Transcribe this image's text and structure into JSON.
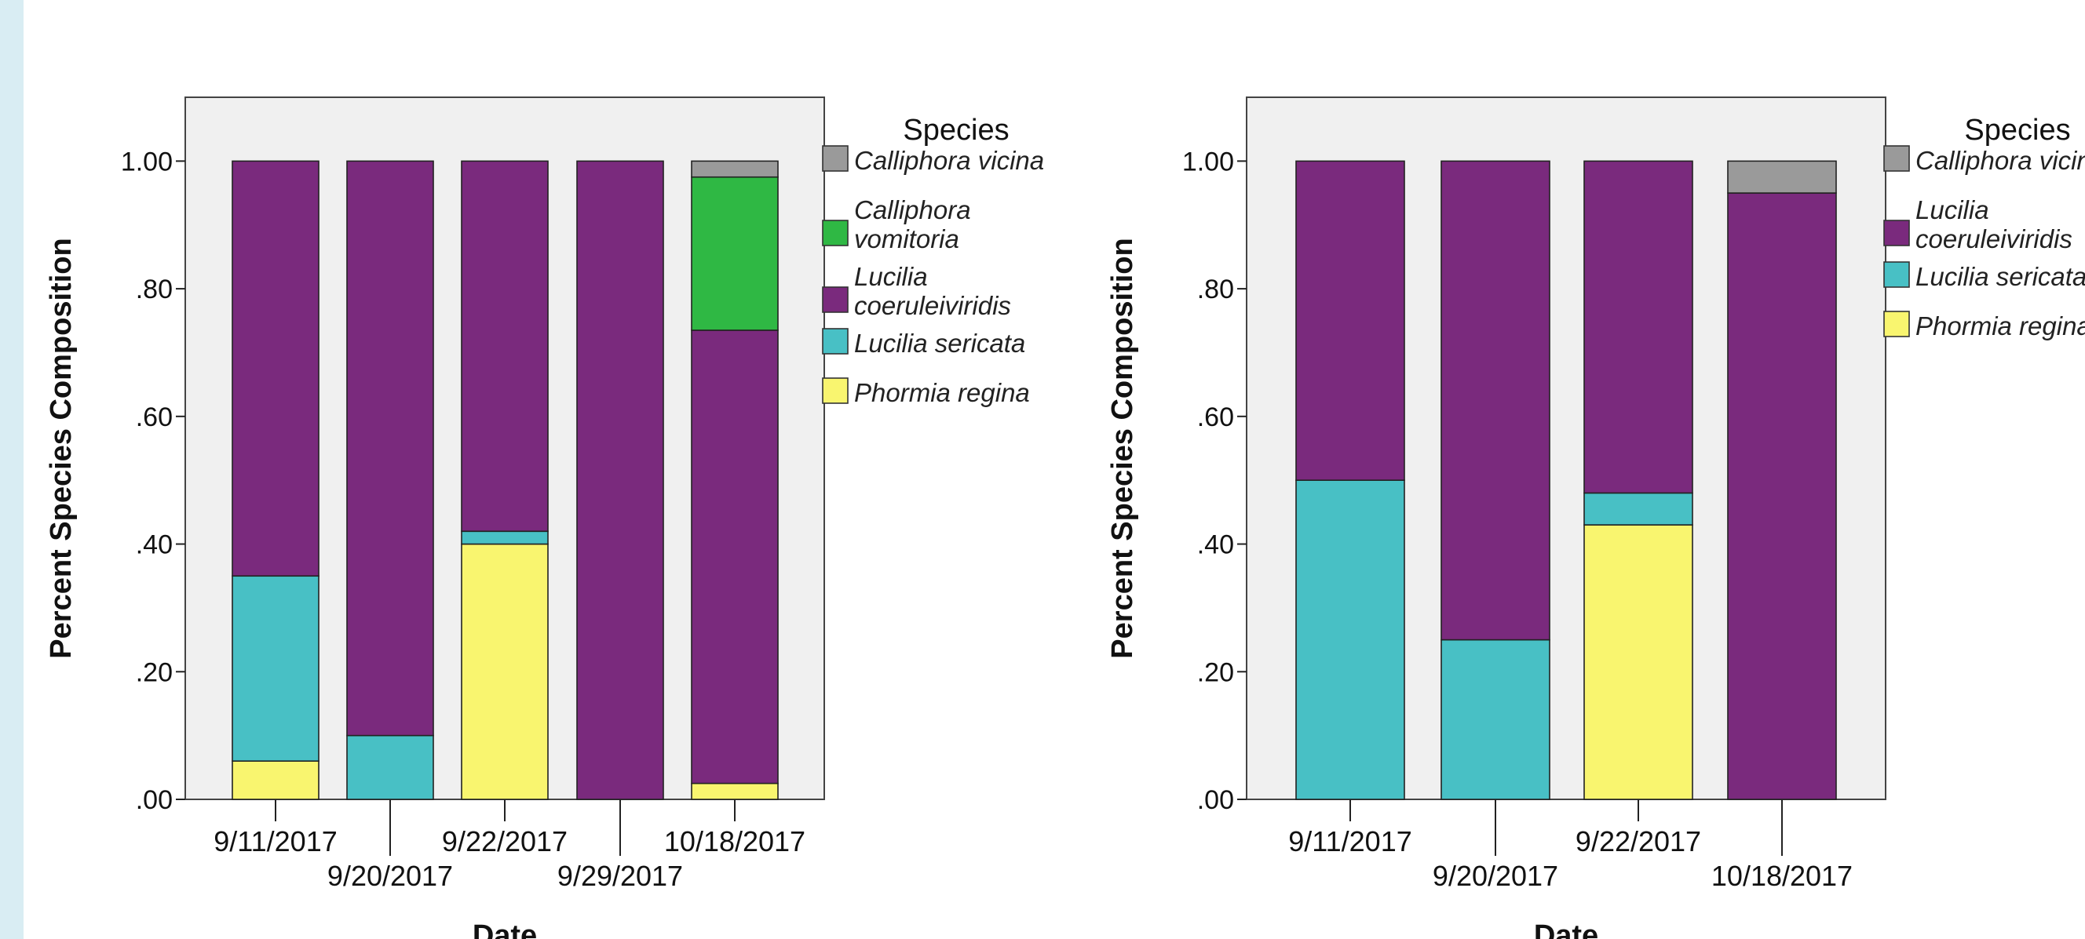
{
  "colors": {
    "page_background": "#ffffff",
    "left_strip": "#d9edf3",
    "plot_background": "#f0f0f0",
    "Calliphora vicina": "#9a9a9a",
    "Calliphora vomitoria": "#2fb844",
    "Lucilia coeruleiviridis": "#7a2a7d",
    "Lucilia sericata": "#48c0c5",
    "Phormia regina": "#f9f56f"
  },
  "chart_data": [
    {
      "type": "bar",
      "stacked": true,
      "xlabel": "Date",
      "ylabel": "Percent Species Composition",
      "ylim": [
        0,
        1.1
      ],
      "yticks": [
        ".00",
        ".20",
        ".40",
        ".60",
        ".80",
        "1.00"
      ],
      "ytick_values": [
        0,
        0.2,
        0.4,
        0.6,
        0.8,
        1.0
      ],
      "grid": false,
      "legend_title": "Species",
      "legend_position": "right",
      "categories": [
        "9/11/2017",
        "9/20/2017",
        "9/22/2017",
        "9/29/2017",
        "10/18/2017"
      ],
      "series": [
        {
          "name": "Phormia regina",
          "values": [
            0.06,
            0,
            0.4,
            0,
            0.025
          ]
        },
        {
          "name": "Lucilia sericata",
          "values": [
            0.29,
            0.1,
            0.02,
            0,
            0
          ]
        },
        {
          "name": "Lucilia coeruleiviridis",
          "values": [
            0.65,
            0.9,
            0.58,
            1.0,
            0.71
          ]
        },
        {
          "name": "Calliphora vomitoria",
          "values": [
            0,
            0,
            0,
            0,
            0.24
          ]
        },
        {
          "name": "Calliphora vicina",
          "values": [
            0,
            0,
            0,
            0,
            0.025
          ]
        }
      ],
      "legend": [
        {
          "lines": [
            "Calliphora vicina"
          ],
          "key": "Calliphora vicina"
        },
        {
          "lines": [
            "Calliphora",
            "vomitoria"
          ],
          "key": "Calliphora vomitoria"
        },
        {
          "lines": [
            "Lucilia",
            "coeruleiviridis"
          ],
          "key": "Lucilia coeruleiviridis"
        },
        {
          "lines": [
            "Lucilia sericata"
          ],
          "key": "Lucilia sericata"
        },
        {
          "lines": [
            "Phormia regina"
          ],
          "key": "Phormia regina"
        }
      ]
    },
    {
      "type": "bar",
      "stacked": true,
      "xlabel": "Date",
      "ylabel": "Percent Species Composition",
      "ylim": [
        0,
        1.1
      ],
      "yticks": [
        ".00",
        ".20",
        ".40",
        ".60",
        ".80",
        "1.00"
      ],
      "ytick_values": [
        0,
        0.2,
        0.4,
        0.6,
        0.8,
        1.0
      ],
      "grid": false,
      "legend_title": "Species",
      "legend_position": "right",
      "categories": [
        "9/11/2017",
        "9/20/2017",
        "9/22/2017",
        "10/18/2017"
      ],
      "series": [
        {
          "name": "Phormia regina",
          "values": [
            0,
            0,
            0.43,
            0
          ]
        },
        {
          "name": "Lucilia sericata",
          "values": [
            0.5,
            0.25,
            0.05,
            0
          ]
        },
        {
          "name": "Lucilia coeruleiviridis",
          "values": [
            0.5,
            0.75,
            0.52,
            0.95
          ]
        },
        {
          "name": "Calliphora vicina",
          "values": [
            0,
            0,
            0,
            0.05
          ]
        }
      ],
      "legend": [
        {
          "lines": [
            "Calliphora vicina"
          ],
          "key": "Calliphora vicina"
        },
        {
          "lines": [
            "Lucilia",
            "coeruleiviridis"
          ],
          "key": "Lucilia coeruleiviridis"
        },
        {
          "lines": [
            "Lucilia sericata"
          ],
          "key": "Lucilia sericata"
        },
        {
          "lines": [
            "Phormia regina"
          ],
          "key": "Phormia regina"
        }
      ]
    }
  ]
}
